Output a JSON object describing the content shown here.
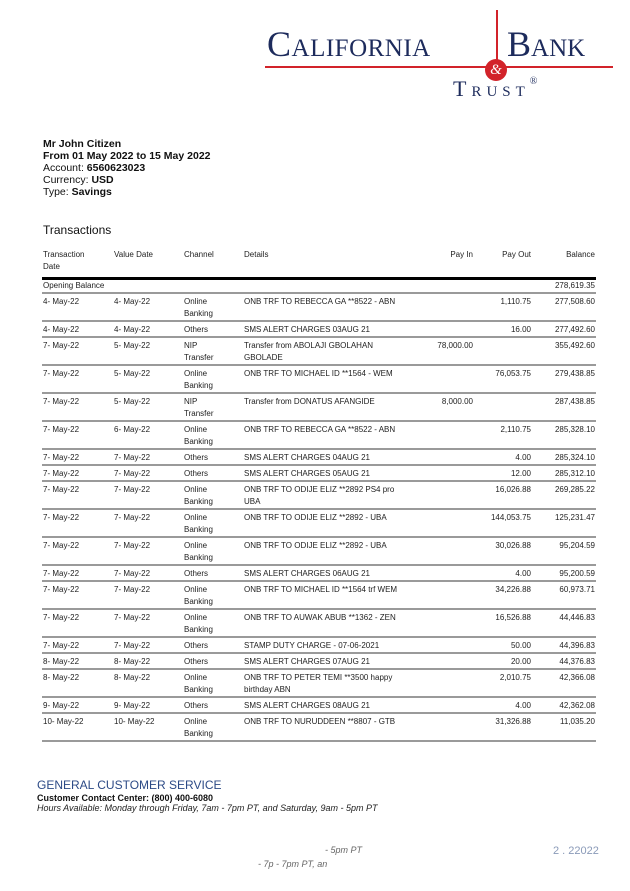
{
  "logo": {
    "word1": "California",
    "word2": "Bank",
    "amp": "&",
    "word3": "Trust",
    "reg": "®",
    "brand_red": "#d2232a",
    "brand_navy": "#1d2b5c"
  },
  "customer": {
    "name": "Mr John Citizen",
    "period": "From 01 May 2022 to 15 May 2022",
    "account_label": "Account:",
    "account": "6560623023",
    "currency_label": "Currency:",
    "currency": "USD",
    "type_label": "Type:",
    "type": "Savings"
  },
  "section_title": "Transactions",
  "columns": [
    "Transaction Date",
    "Value Date",
    "Channel",
    "Details",
    "Pay In",
    "Pay Out",
    "Balance"
  ],
  "opening": {
    "label": "Opening Balance",
    "balance": "278,619.35"
  },
  "rows": [
    [
      "4- May-22",
      "4- May-22",
      "Online Banking",
      "ONB TRF TO REBECCA GA **8522 - ABN",
      "",
      "1,110.75",
      "277,508.60"
    ],
    [
      "4- May-22",
      "4- May-22",
      "Others",
      "SMS ALERT CHARGES 03AUG 21",
      "",
      "16.00",
      "277,492.60"
    ],
    [
      "7- May-22",
      "5- May-22",
      "NIP Transfer",
      "Transfer from ABOLAJI GBOLAHAN GBOLADE",
      "78,000.00",
      "",
      "355,492.60"
    ],
    [
      "7- May-22",
      "5- May-22",
      "Online Banking",
      "ONB TRF TO MICHAEL ID **1564 - WEM",
      "",
      "76,053.75",
      "279,438.85"
    ],
    [
      "7- May-22",
      "5- May-22",
      "NIP Transfer",
      "Transfer from DONATUS AFANGIDE",
      "8,000.00",
      "",
      "287,438.85"
    ],
    [
      "7- May-22",
      "6- May-22",
      "Online Banking",
      "ONB TRF TO REBECCA GA **8522 - ABN",
      "",
      "2,110.75",
      "285,328.10"
    ],
    [
      "7- May-22",
      "7- May-22",
      "Others",
      "SMS ALERT CHARGES 04AUG 21",
      "",
      "4.00",
      "285,324.10"
    ],
    [
      "7- May-22",
      "7- May-22",
      "Others",
      "SMS ALERT CHARGES 05AUG 21",
      "",
      "12.00",
      "285,312.10"
    ],
    [
      "7- May-22",
      "7- May-22",
      "Online Banking",
      "ONB TRF TO ODIJE ELIZ **2892 PS4 pro UBA",
      "",
      "16,026.88",
      "269,285.22"
    ],
    [
      "7- May-22",
      "7- May-22",
      "Online Banking",
      "ONB TRF TO ODIJE ELIZ **2892 - UBA",
      "",
      "144,053.75",
      "125,231.47"
    ],
    [
      "7- May-22",
      "7- May-22",
      "Online Banking",
      "ONB TRF TO ODIJE ELIZ **2892 - UBA",
      "",
      "30,026.88",
      "95,204.59"
    ],
    [
      "7- May-22",
      "7- May-22",
      "Others",
      "SMS ALERT CHARGES 06AUG 21",
      "",
      "4.00",
      "95,200.59"
    ],
    [
      "7- May-22",
      "7- May-22",
      "Online Banking",
      "ONB TRF TO MICHAEL ID **1564 trf WEM",
      "",
      "34,226.88",
      "60,973.71"
    ],
    [
      "7- May-22",
      "7- May-22",
      "Online Banking",
      "ONB TRF TO AUWAK ABUB **1362 - ZEN",
      "",
      "16,526.88",
      "44,446.83"
    ],
    [
      "7- May-22",
      "7- May-22",
      "Others",
      "STAMP DUTY CHARGE - 07-06-2021",
      "",
      "50.00",
      "44,396.83"
    ],
    [
      "8- May-22",
      "8- May-22",
      "Others",
      "SMS ALERT CHARGES 07AUG 21",
      "",
      "20.00",
      "44,376.83"
    ],
    [
      "8- May-22",
      "8- May-22",
      "Online Banking",
      "ONB TRF TO PETER TEMI **3500 happy birthday ABN",
      "",
      "2,010.75",
      "42,366.08"
    ],
    [
      "9- May-22",
      "9- May-22",
      "Others",
      "SMS ALERT CHARGES 08AUG 21",
      "",
      "4.00",
      "42,362.08"
    ],
    [
      "10- May-22",
      "10- May-22",
      "Online Banking",
      "ONB TRF TO NURUDDEEN **8807 - GTB",
      "",
      "31,326.88",
      "11,035.20"
    ]
  ],
  "footer": {
    "title": "GENERAL CUSTOMER SERVICE",
    "contact": "Customer Contact Center: (800) 400-6080",
    "hours": "Hours Available:  Monday through Friday, 7am - 7pm PT, and Saturday, 9am - 5pm PT"
  },
  "ghost": {
    "line1": "- 5pm PT",
    "line2": "- 7p - 7pm PT, an",
    "date": "2 . 22022"
  }
}
